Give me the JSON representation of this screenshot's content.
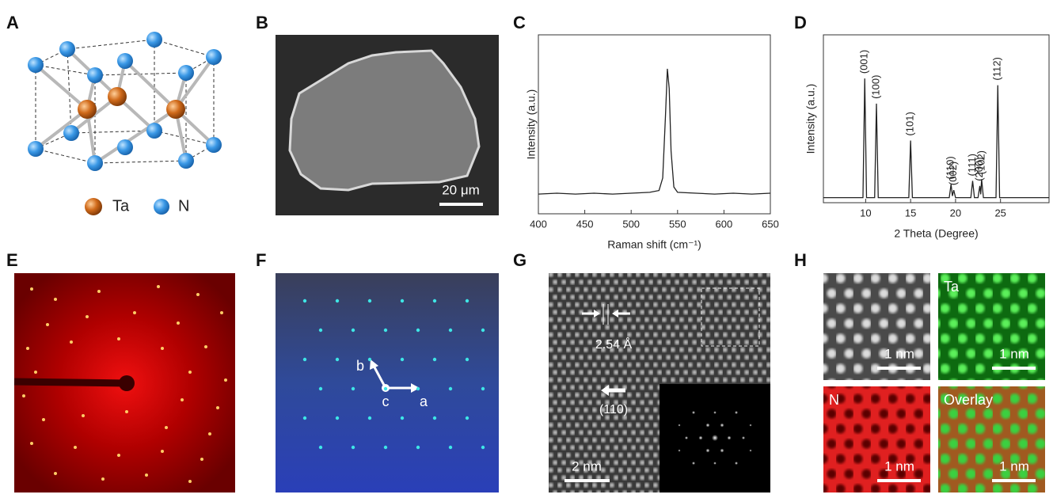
{
  "panels": {
    "A": {
      "label": "A",
      "legend": [
        "Ta",
        "N"
      ]
    },
    "B": {
      "label": "B",
      "scale_bar": "20 μm"
    },
    "C": {
      "label": "C"
    },
    "D": {
      "label": "D"
    },
    "E": {
      "label": "E"
    },
    "F": {
      "label": "F",
      "axes": [
        "a",
        "b",
        "c"
      ]
    },
    "G": {
      "label": "G",
      "spacing": "2.54 Å",
      "direction": "(110)",
      "scale_bar": "2 nm"
    },
    "H": {
      "label": "H",
      "channels": [
        "Ta",
        "N",
        "Overlay"
      ],
      "scale_bars": [
        "1 nm",
        "1 nm",
        "1 nm",
        "1 nm"
      ]
    }
  },
  "chart_data": [
    {
      "type": "line",
      "xlabel": "Raman shift (cm⁻¹)",
      "ylabel": "Intensity (a.u.)",
      "color": "#222222",
      "x": [
        400,
        420,
        440,
        460,
        480,
        500,
        520,
        530,
        534,
        537,
        539,
        541,
        543,
        546,
        550,
        570,
        590,
        610,
        630,
        650
      ],
      "values": [
        0.11,
        0.115,
        0.11,
        0.115,
        0.11,
        0.115,
        0.12,
        0.13,
        0.2,
        0.55,
        0.81,
        0.7,
        0.35,
        0.15,
        0.12,
        0.115,
        0.11,
        0.115,
        0.11,
        0.115
      ],
      "xlim": [
        400,
        650
      ],
      "ylim": [
        0,
        1
      ],
      "xticks": [
        400,
        450,
        500,
        550,
        600,
        650
      ]
    },
    {
      "type": "line",
      "xlabel": "2 Theta (Degree)",
      "ylabel": "Intensity (a.u.)",
      "color": "#222222",
      "x": [
        5.3,
        9.7,
        9.9,
        10.1,
        11.0,
        11.2,
        11.4,
        14.8,
        15.0,
        15.2,
        19.3,
        19.5,
        19.65,
        19.8,
        20.0,
        21.7,
        21.9,
        22.1,
        22.5,
        22.7,
        22.8,
        22.9,
        23.1,
        24.5,
        24.7,
        24.9,
        30.4
      ],
      "values": [
        0.03,
        0.03,
        0.74,
        0.03,
        0.03,
        0.59,
        0.03,
        0.03,
        0.37,
        0.03,
        0.03,
        0.11,
        0.04,
        0.075,
        0.03,
        0.03,
        0.13,
        0.03,
        0.03,
        0.1,
        0.05,
        0.14,
        0.03,
        0.03,
        0.7,
        0.03,
        0.03
      ],
      "xlim": [
        5.3,
        30.4
      ],
      "ylim": [
        0,
        1
      ],
      "xticks": [
        10,
        15,
        20,
        25
      ],
      "annotations": [
        {
          "text": "(001)",
          "x": 9.9
        },
        {
          "text": "(100)",
          "x": 11.2
        },
        {
          "text": "(101)",
          "x": 15.0
        },
        {
          "text": "(110)",
          "x": 19.5
        },
        {
          "text": "(002)",
          "x": 19.8
        },
        {
          "text": "(111)",
          "x": 21.9
        },
        {
          "text": "(200)",
          "x": 22.7
        },
        {
          "text": "(102)",
          "x": 22.9
        },
        {
          "text": "(112)",
          "x": 24.7
        }
      ]
    }
  ]
}
